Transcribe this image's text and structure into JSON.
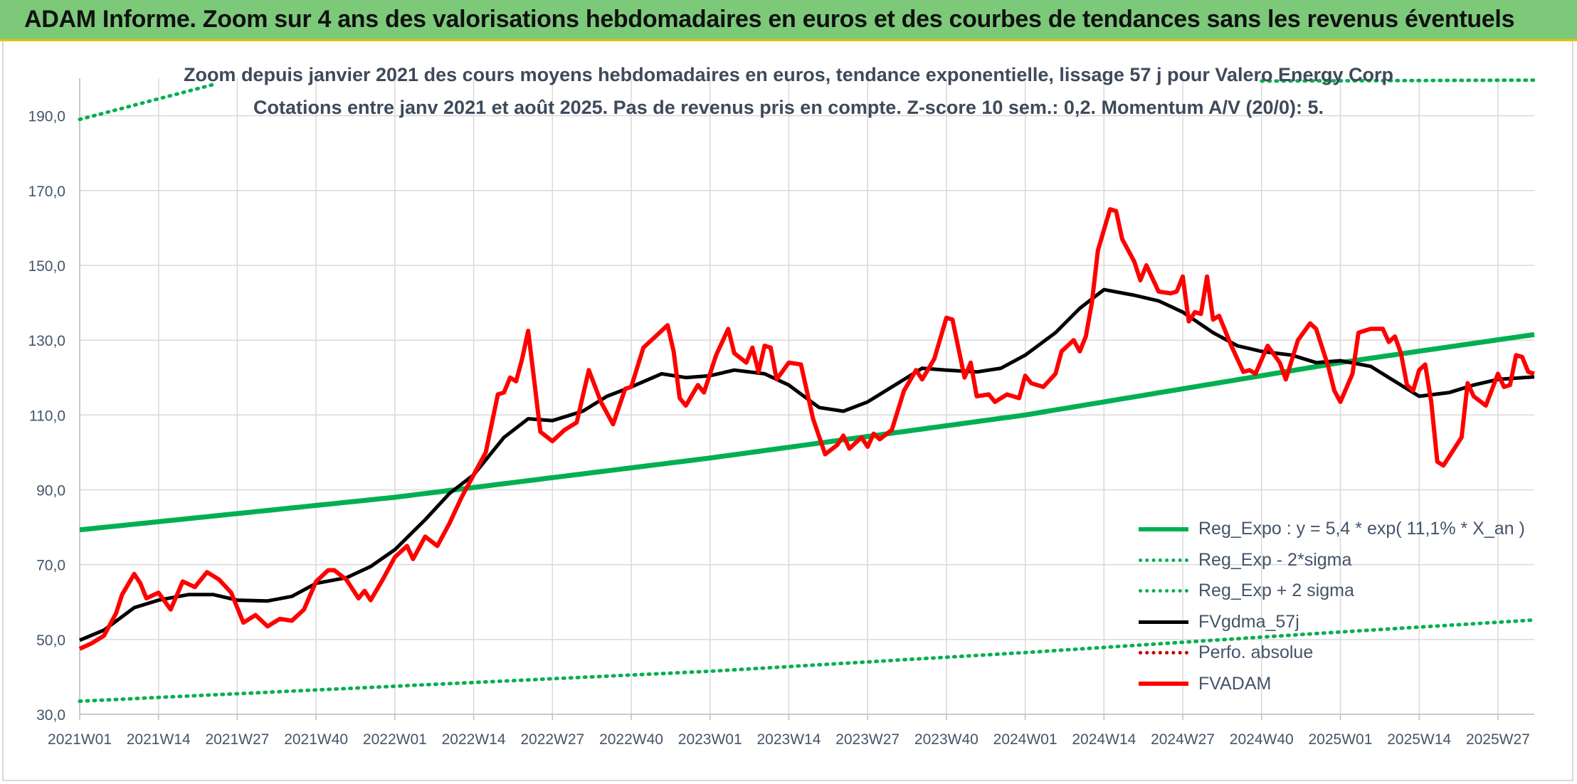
{
  "banner": {
    "title": "ADAM Informe. Zoom sur 4 ans des valorisations hebdomadaires en euros et des courbes de tendances sans les revenus éventuels"
  },
  "colors": {
    "banner_bg": "#7cc97a",
    "trend_green": "#00b050",
    "fvgdma_black": "#000000",
    "fvadam_red": "#ff0000",
    "perfo_red": "#c00000",
    "text": "#44546a"
  },
  "chart_data": {
    "type": "line",
    "title": "Zoom depuis janvier 2021 des cours moyens hebdomadaires en euros, tendance exponentielle, lissage 57 j pour Valero Energy Corp",
    "subtitle": "Cotations entre janv 2021 et août 2025. Pas de revenus pris en compte. Z-score 10 sem.: 0,2. Momentum A/V (20/0): 5.",
    "ylim": [
      30,
      200
    ],
    "yticks": [
      "30,0",
      "50,0",
      "70,0",
      "90,0",
      "110,0",
      "130,0",
      "150,0",
      "170,0",
      "190,0"
    ],
    "ytick_values": [
      30,
      50,
      70,
      90,
      110,
      130,
      150,
      170,
      190
    ],
    "x_start_week": "2021W01",
    "x_end_week": "2025W33",
    "xticks": [
      "2021W01",
      "2021W14",
      "2021W27",
      "2021W40",
      "2022W01",
      "2022W14",
      "2022W27",
      "2022W40",
      "2023W01",
      "2023W14",
      "2023W27",
      "2023W40",
      "2024W01",
      "2024W14",
      "2024W27",
      "2024W40",
      "2025W01",
      "2025W14",
      "2025W27"
    ],
    "grid": true,
    "legend_position": "bottom-right",
    "series": [
      {
        "name": "Reg_Expo : y = 5,4 * exp( 11,1% *  X_an )",
        "style": "solid",
        "color": "#00b050",
        "points": [
          [
            "2021W01",
            79.3
          ],
          [
            "2022W01",
            88.0
          ],
          [
            "2023W01",
            98.5
          ],
          [
            "2024W01",
            110.0
          ],
          [
            "2025W01",
            124.0
          ],
          [
            "2025W33",
            131.5
          ]
        ]
      },
      {
        "name": "Reg_Exp - 2*sigma",
        "style": "dotted",
        "color": "#00b050",
        "points": [
          [
            "2021W01",
            33.5
          ],
          [
            "2022W01",
            37.5
          ],
          [
            "2023W01",
            41.5
          ],
          [
            "2024W01",
            46.5
          ],
          [
            "2025W01",
            52.0
          ],
          [
            "2025W33",
            55.2
          ]
        ]
      },
      {
        "name": "Reg_Exp + 2 sigma",
        "style": "dotted",
        "color": "#00b050",
        "points": [
          [
            "2021W01",
            189.0
          ],
          [
            "2021W23",
            198.3
          ],
          [
            "2025W33",
            199.5
          ]
        ],
        "gap_after_week": "2021W23",
        "resume_week": "2024W40"
      },
      {
        "name": "FVgdma_57j",
        "style": "solid",
        "color": "#000000",
        "points": [
          [
            "2021W01",
            49.8
          ],
          [
            "2021W05",
            52.5
          ],
          [
            "2021W10",
            58.5
          ],
          [
            "2021W14",
            60.5
          ],
          [
            "2021W19",
            62.0
          ],
          [
            "2021W23",
            62.0
          ],
          [
            "2021W27",
            60.5
          ],
          [
            "2021W32",
            60.3
          ],
          [
            "2021W36",
            61.5
          ],
          [
            "2021W40",
            65.0
          ],
          [
            "2021W45",
            66.5
          ],
          [
            "2021W49",
            69.5
          ],
          [
            "2022W01",
            74.0
          ],
          [
            "2022W06",
            82.0
          ],
          [
            "2022W10",
            89.0
          ],
          [
            "2022W14",
            94.0
          ],
          [
            "2022W19",
            104.0
          ],
          [
            "2022W23",
            109.0
          ],
          [
            "2022W27",
            108.5
          ],
          [
            "2022W32",
            111.0
          ],
          [
            "2022W36",
            115.0
          ],
          [
            "2022W40",
            117.5
          ],
          [
            "2022W45",
            121.0
          ],
          [
            "2022W49",
            120.0
          ],
          [
            "2023W01",
            120.5
          ],
          [
            "2023W05",
            122.0
          ],
          [
            "2023W10",
            121.0
          ],
          [
            "2023W14",
            118.0
          ],
          [
            "2023W19",
            112.0
          ],
          [
            "2023W23",
            111.0
          ],
          [
            "2023W27",
            113.5
          ],
          [
            "2023W32",
            118.5
          ],
          [
            "2023W36",
            122.5
          ],
          [
            "2023W40",
            122.0
          ],
          [
            "2023W45",
            121.5
          ],
          [
            "2023W49",
            122.5
          ],
          [
            "2024W01",
            126.0
          ],
          [
            "2024W06",
            132.0
          ],
          [
            "2024W10",
            138.5
          ],
          [
            "2024W14",
            143.5
          ],
          [
            "2024W19",
            142.0
          ],
          [
            "2024W23",
            140.5
          ],
          [
            "2024W27",
            137.5
          ],
          [
            "2024W32",
            132.0
          ],
          [
            "2024W36",
            128.5
          ],
          [
            "2024W40",
            127.0
          ],
          [
            "2024W45",
            126.0
          ],
          [
            "2024W49",
            124.0
          ],
          [
            "2025W01",
            124.5
          ],
          [
            "2025W06",
            123.0
          ],
          [
            "2025W10",
            119.0
          ],
          [
            "2025W14",
            115.0
          ],
          [
            "2025W19",
            116.0
          ],
          [
            "2025W23",
            118.0
          ],
          [
            "2025W27",
            119.5
          ],
          [
            "2025W33",
            120.2
          ]
        ]
      },
      {
        "name": "Perfo. absolue",
        "style": "dotted",
        "color": "#c00000",
        "points": []
      },
      {
        "name": "FVADAM",
        "style": "solid",
        "color": "#ff0000",
        "points": [
          [
            "2021W01",
            47.5
          ],
          [
            "2021W03",
            49.0
          ],
          [
            "2021W05",
            51.0
          ],
          [
            "2021W07",
            57.0
          ],
          [
            "2021W08",
            62.0
          ],
          [
            "2021W10",
            67.5
          ],
          [
            "2021W11",
            65.0
          ],
          [
            "2021W12",
            61.0
          ],
          [
            "2021W14",
            62.5
          ],
          [
            "2021W16",
            58.0
          ],
          [
            "2021W18",
            65.5
          ],
          [
            "2021W20",
            64.0
          ],
          [
            "2021W22",
            68.0
          ],
          [
            "2021W24",
            66.0
          ],
          [
            "2021W26",
            62.5
          ],
          [
            "2021W28",
            54.5
          ],
          [
            "2021W30",
            56.5
          ],
          [
            "2021W32",
            53.5
          ],
          [
            "2021W34",
            55.5
          ],
          [
            "2021W36",
            55.0
          ],
          [
            "2021W38",
            58.0
          ],
          [
            "2021W40",
            65.5
          ],
          [
            "2021W42",
            68.5
          ],
          [
            "2021W43",
            68.5
          ],
          [
            "2021W45",
            66.0
          ],
          [
            "2021W47",
            61.0
          ],
          [
            "2021W48",
            63.0
          ],
          [
            "2021W49",
            60.5
          ],
          [
            "2021W51",
            66.0
          ],
          [
            "2022W01",
            72.0
          ],
          [
            "2022W03",
            75.0
          ],
          [
            "2022W04",
            71.5
          ],
          [
            "2022W06",
            77.5
          ],
          [
            "2022W08",
            75.0
          ],
          [
            "2022W10",
            81.0
          ],
          [
            "2022W12",
            88.0
          ],
          [
            "2022W14",
            94.0
          ],
          [
            "2022W16",
            100.0
          ],
          [
            "2022W18",
            115.5
          ],
          [
            "2022W19",
            116.0
          ],
          [
            "2022W20",
            120.0
          ],
          [
            "2022W21",
            119.0
          ],
          [
            "2022W22",
            125.0
          ],
          [
            "2022W23",
            132.5
          ],
          [
            "2022W24",
            119.0
          ],
          [
            "2022W25",
            105.5
          ],
          [
            "2022W27",
            103.0
          ],
          [
            "2022W29",
            106.0
          ],
          [
            "2022W31",
            108.0
          ],
          [
            "2022W33",
            122.0
          ],
          [
            "2022W35",
            113.5
          ],
          [
            "2022W37",
            107.5
          ],
          [
            "2022W39",
            117.0
          ],
          [
            "2022W40",
            117.5
          ],
          [
            "2022W42",
            128.0
          ],
          [
            "2022W44",
            131.0
          ],
          [
            "2022W46",
            134.0
          ],
          [
            "2022W47",
            127.0
          ],
          [
            "2022W48",
            114.5
          ],
          [
            "2022W49",
            112.5
          ],
          [
            "2022W51",
            118.0
          ],
          [
            "2022W52",
            116.0
          ],
          [
            "2023W02",
            126.0
          ],
          [
            "2023W04",
            133.0
          ],
          [
            "2023W05",
            126.5
          ],
          [
            "2023W07",
            124.0
          ],
          [
            "2023W08",
            128.0
          ],
          [
            "2023W09",
            121.5
          ],
          [
            "2023W10",
            128.5
          ],
          [
            "2023W11",
            128.0
          ],
          [
            "2023W12",
            119.5
          ],
          [
            "2023W14",
            124.0
          ],
          [
            "2023W16",
            123.5
          ],
          [
            "2023W18",
            109.0
          ],
          [
            "2023W20",
            99.5
          ],
          [
            "2023W22",
            102.0
          ],
          [
            "2023W23",
            104.5
          ],
          [
            "2023W24",
            101.0
          ],
          [
            "2023W26",
            104.0
          ],
          [
            "2023W27",
            101.5
          ],
          [
            "2023W28",
            105.0
          ],
          [
            "2023W29",
            103.5
          ],
          [
            "2023W31",
            106.0
          ],
          [
            "2023W33",
            116.5
          ],
          [
            "2023W35",
            122.0
          ],
          [
            "2023W36",
            119.5
          ],
          [
            "2023W38",
            125.0
          ],
          [
            "2023W40",
            136.0
          ],
          [
            "2023W41",
            135.5
          ],
          [
            "2023W43",
            120.0
          ],
          [
            "2023W44",
            124.0
          ],
          [
            "2023W45",
            115.0
          ],
          [
            "2023W47",
            115.5
          ],
          [
            "2023W48",
            113.5
          ],
          [
            "2023W50",
            115.5
          ],
          [
            "2023W52",
            114.5
          ],
          [
            "2024W01",
            120.5
          ],
          [
            "2024W02",
            118.5
          ],
          [
            "2024W04",
            117.5
          ],
          [
            "2024W06",
            121.0
          ],
          [
            "2024W07",
            127.0
          ],
          [
            "2024W09",
            130.0
          ],
          [
            "2024W10",
            127.0
          ],
          [
            "2024W11",
            131.0
          ],
          [
            "2024W12",
            140.0
          ],
          [
            "2024W13",
            154.0
          ],
          [
            "2024W15",
            165.0
          ],
          [
            "2024W16",
            164.5
          ],
          [
            "2024W17",
            157.0
          ],
          [
            "2024W19",
            151.0
          ],
          [
            "2024W20",
            146.0
          ],
          [
            "2024W21",
            150.0
          ],
          [
            "2024W23",
            143.0
          ],
          [
            "2024W25",
            142.5
          ],
          [
            "2024W26",
            143.0
          ],
          [
            "2024W27",
            147.0
          ],
          [
            "2024W28",
            135.0
          ],
          [
            "2024W29",
            137.5
          ],
          [
            "2024W30",
            137.0
          ],
          [
            "2024W31",
            147.0
          ],
          [
            "2024W32",
            135.5
          ],
          [
            "2024W33",
            136.5
          ],
          [
            "2024W35",
            128.5
          ],
          [
            "2024W37",
            121.5
          ],
          [
            "2024W38",
            122.0
          ],
          [
            "2024W39",
            121.0
          ],
          [
            "2024W41",
            128.5
          ],
          [
            "2024W43",
            124.0
          ],
          [
            "2024W44",
            119.5
          ],
          [
            "2024W46",
            130.0
          ],
          [
            "2024W48",
            134.5
          ],
          [
            "2024W49",
            133.0
          ],
          [
            "2024W51",
            123.0
          ],
          [
            "2024W52",
            116.5
          ],
          [
            "2025W01",
            113.5
          ],
          [
            "2025W03",
            121.0
          ],
          [
            "2025W04",
            132.0
          ],
          [
            "2025W06",
            133.0
          ],
          [
            "2025W08",
            133.0
          ],
          [
            "2025W09",
            129.5
          ],
          [
            "2025W10",
            131.0
          ],
          [
            "2025W11",
            126.5
          ],
          [
            "2025W12",
            118.0
          ],
          [
            "2025W13",
            116.5
          ],
          [
            "2025W14",
            122.0
          ],
          [
            "2025W15",
            123.5
          ],
          [
            "2025W16",
            113.5
          ],
          [
            "2025W17",
            97.5
          ],
          [
            "2025W18",
            96.5
          ],
          [
            "2025W19",
            99.0
          ],
          [
            "2025W21",
            104.0
          ],
          [
            "2025W22",
            118.5
          ],
          [
            "2025W23",
            115.0
          ],
          [
            "2025W25",
            112.5
          ],
          [
            "2025W27",
            121.0
          ],
          [
            "2025W28",
            117.5
          ],
          [
            "2025W29",
            118.0
          ],
          [
            "2025W30",
            126.0
          ],
          [
            "2025W31",
            125.5
          ],
          [
            "2025W32",
            121.5
          ],
          [
            "2025W33",
            121.0
          ]
        ]
      }
    ]
  }
}
